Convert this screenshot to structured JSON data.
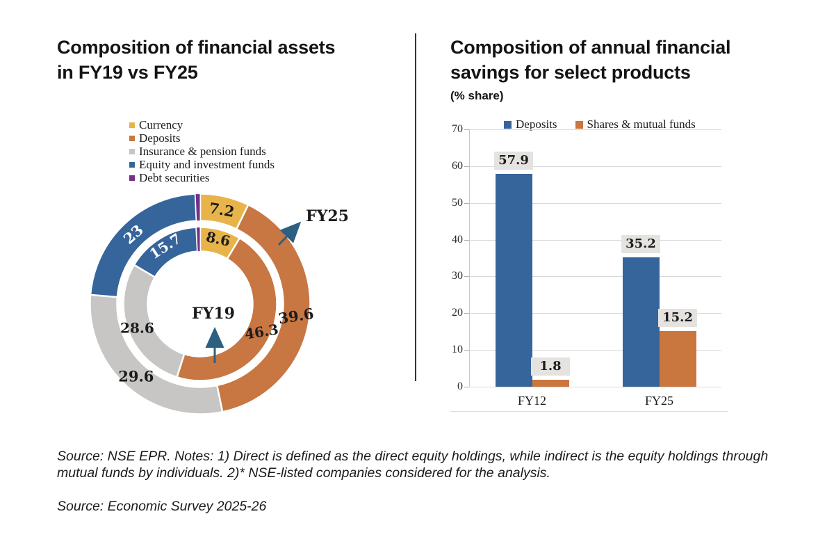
{
  "donut_chart": {
    "title_line1": "Composition of financial assets",
    "title_line2": "in FY19 vs FY25",
    "inner_ring_label": "FY19",
    "outer_ring_label": "FY25"
  },
  "bar_chart": {
    "title_line1": "Composition of annual financial",
    "title_line2": "savings for select products",
    "subtitle": "(% share)"
  },
  "footer": {
    "note1": "Source: NSE EPR. Notes: 1) Direct is defined as the direct equity holdings, while indirect is the equity holdings through mutual funds by individuals. 2)* NSE-listed companies considered for the analysis.",
    "note2": "Source: Economic Survey 2025-26"
  },
  "chart_data": [
    {
      "type": "pie",
      "variant": "double-donut",
      "title": "Composition of financial assets in FY19 vs FY25",
      "categories": [
        "Currency",
        "Deposits",
        "Insurance & pension funds",
        "Equity and investment funds",
        "Debt securities"
      ],
      "colors": [
        "#E8B44A",
        "#C87642",
        "#C7C6C4",
        "#36659C",
        "#752F87"
      ],
      "rings": [
        {
          "name": "FY25",
          "position": "outer",
          "values": [
            7.2,
            39.6,
            29.6,
            23,
            0.7
          ],
          "value_labels": [
            "7.2",
            "39.6",
            "29.6",
            "23",
            ""
          ]
        },
        {
          "name": "FY19",
          "position": "inner",
          "values": [
            8.6,
            46.3,
            28.6,
            15.7,
            0.8
          ],
          "value_labels": [
            "8.6",
            "46.3",
            "28.6",
            "15.7",
            ""
          ]
        }
      ],
      "start_angle": "12-oclock, clockwise",
      "annotation_color": "#2D5F80",
      "legend_position": "top-left"
    },
    {
      "type": "bar",
      "title": "Composition of annual financial savings for select products",
      "subtitle": "(% share)",
      "categories": [
        "FY12",
        "FY25"
      ],
      "series": [
        {
          "name": "Deposits",
          "color": "#36659C",
          "values": [
            57.9,
            35.2
          ]
        },
        {
          "name": "Shares & mutual funds",
          "color": "#C9763F",
          "values": [
            1.8,
            15.2
          ]
        }
      ],
      "value_labels": [
        [
          "57.9",
          "35.2"
        ],
        [
          "1.8",
          "15.2"
        ]
      ],
      "ylim": [
        0,
        70
      ],
      "yticks": [
        0,
        10,
        20,
        30,
        40,
        50,
        60,
        70
      ],
      "grid": true,
      "legend_position": "top",
      "value_label_background": "#E5E3DF"
    }
  ]
}
